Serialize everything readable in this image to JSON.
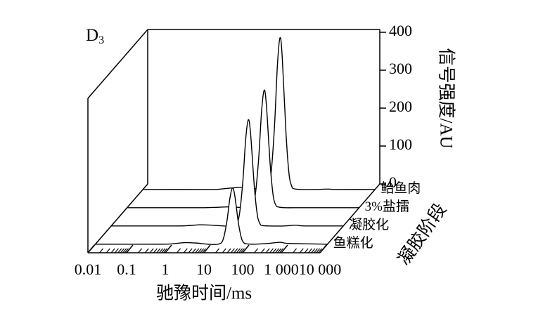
{
  "chart_data": {
    "type": "waterfall",
    "panel_label": "D",
    "panel_label_sub": "3",
    "x_label": "驰豫时间/ms",
    "y_label": "信号强度/AU",
    "z_label": "凝胶阶段",
    "xscale": "log",
    "xlim": [
      0.01,
      10000
    ],
    "xticks": [
      0.01,
      0.1,
      1,
      10,
      100,
      {
        "value": 1000,
        "label": "1 000"
      },
      {
        "value": 10000,
        "label": "10 000"
      }
    ],
    "ylim": [
      0,
      400
    ],
    "yticks": [
      0,
      100,
      200,
      300,
      400
    ],
    "x": [
      0.01,
      0.5,
      1,
      2,
      4,
      8,
      15,
      20,
      25,
      30,
      35,
      40,
      50,
      60,
      70,
      80,
      120,
      300,
      600,
      1000,
      10000
    ],
    "series": [
      {
        "name": "鲐鱼肉",
        "color": "#000000",
        "values": [
          0,
          0,
          1,
          4,
          6,
          2,
          1,
          33,
          160,
          328,
          400,
          348,
          148,
          40,
          9,
          2,
          0,
          0,
          1,
          0,
          0
        ]
      },
      {
        "name": "3%盐擂",
        "color": "#000000",
        "values": [
          0,
          0,
          0,
          1,
          2,
          1,
          1,
          25,
          124,
          254,
          310,
          270,
          115,
          31,
          7,
          2,
          0,
          0,
          0,
          0,
          0
        ]
      },
      {
        "name": "凝胶化",
        "color": "#000000",
        "values": [
          0,
          0,
          1,
          3,
          2,
          0,
          1,
          23,
          112,
          230,
          280,
          244,
          104,
          28,
          6,
          1,
          0,
          0,
          2,
          0,
          0
        ]
      },
      {
        "name": "鱼糕化",
        "color": "#000000",
        "values": [
          0,
          0,
          1,
          4,
          3,
          0,
          0,
          12,
          59,
          121,
          148,
          129,
          55,
          15,
          3,
          1,
          0,
          2,
          5,
          2,
          0
        ]
      }
    ]
  }
}
